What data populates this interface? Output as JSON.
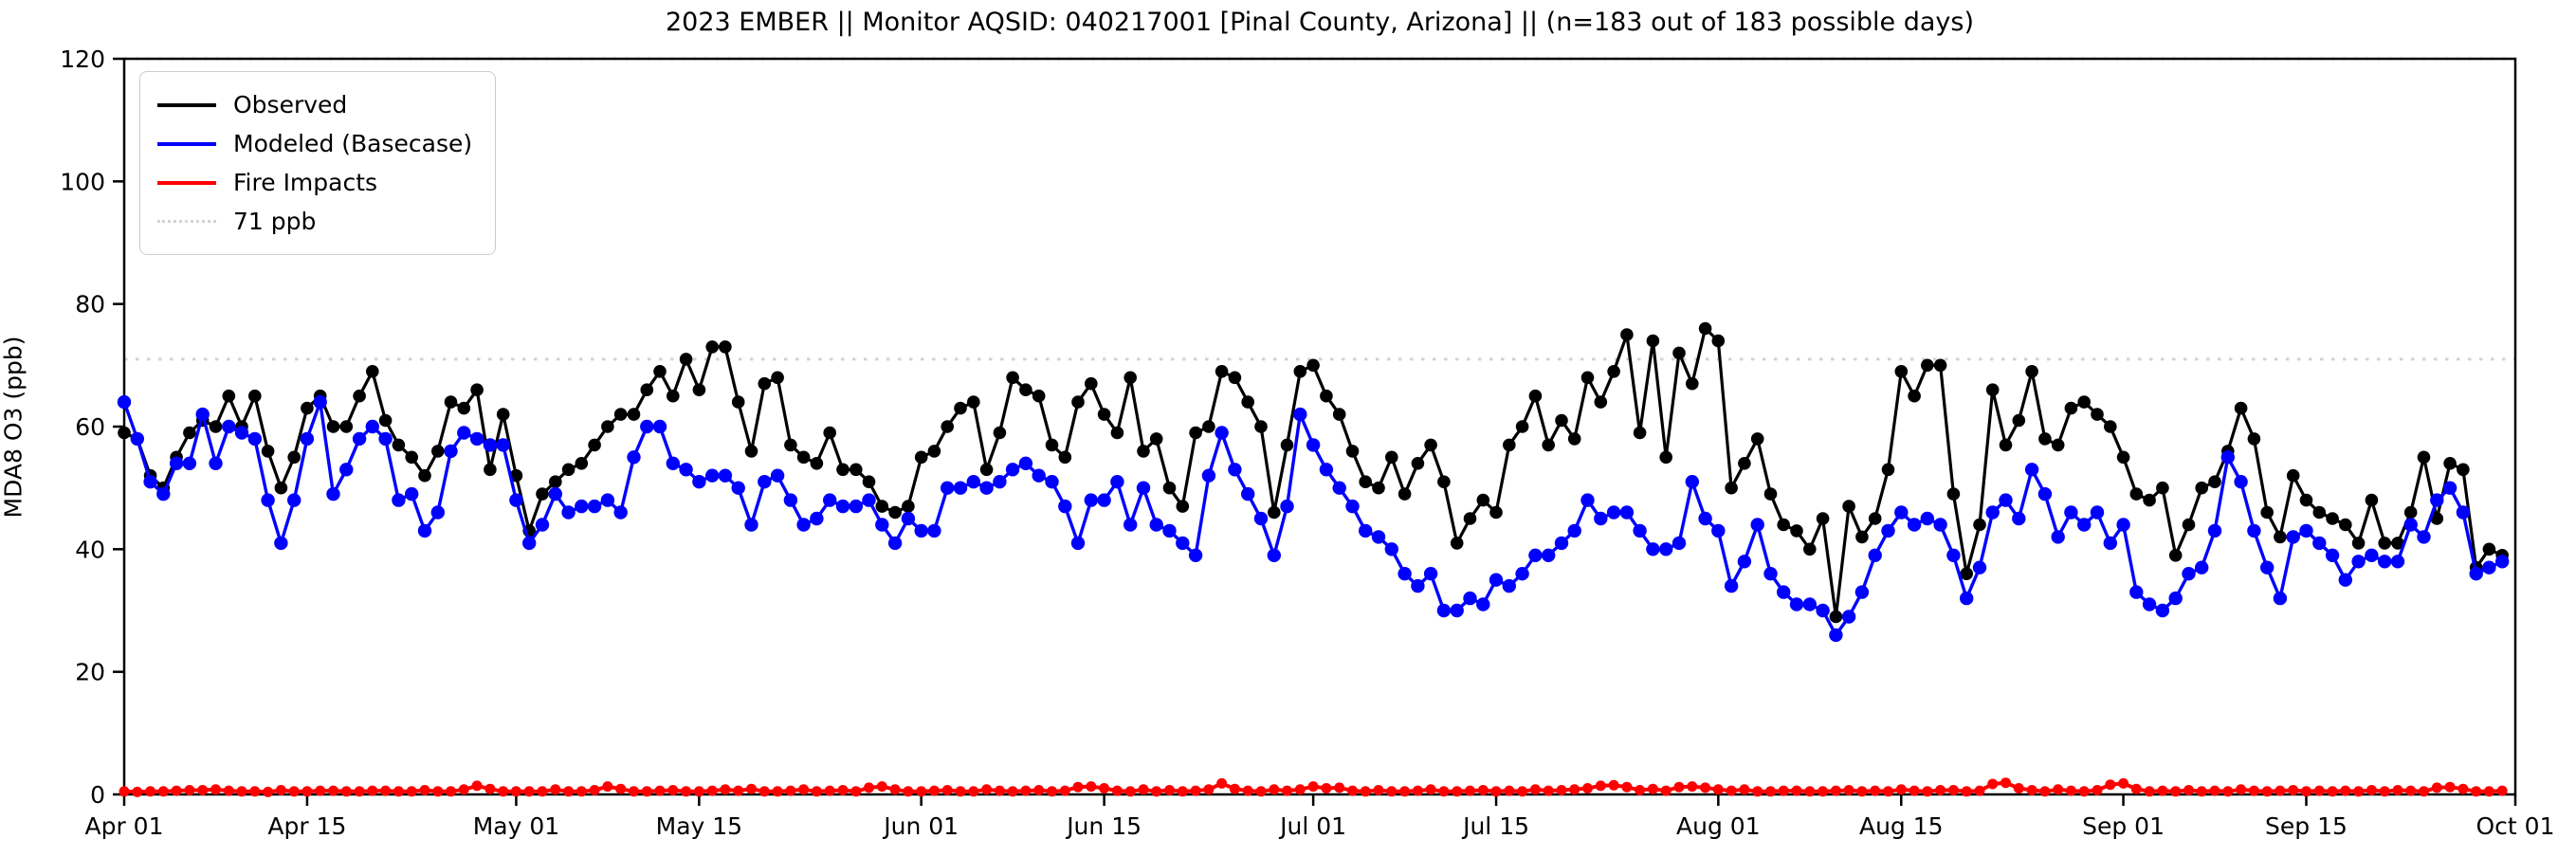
{
  "title": "2023 EMBER || Monitor AQSID: 040217001 [Pinal County, Arizona] || (n=183 out of 183 possible days)",
  "y_axis": {
    "label": "MDA8 O3 (ppb)",
    "ticks": [
      0,
      20,
      40,
      60,
      80,
      100,
      120
    ],
    "min": 0,
    "max": 120
  },
  "x_axis": {
    "ticks": [
      {
        "label": "Apr 01",
        "day": 0
      },
      {
        "label": "Apr 15",
        "day": 14
      },
      {
        "label": "May 01",
        "day": 30
      },
      {
        "label": "May 15",
        "day": 44
      },
      {
        "label": "Jun 01",
        "day": 61
      },
      {
        "label": "Jun 15",
        "day": 75
      },
      {
        "label": "Jul 01",
        "day": 91
      },
      {
        "label": "Jul 15",
        "day": 105
      },
      {
        "label": "Aug 01",
        "day": 122
      },
      {
        "label": "Aug 15",
        "day": 136
      },
      {
        "label": "Sep 01",
        "day": 153
      },
      {
        "label": "Sep 15",
        "day": 167
      },
      {
        "label": "Oct 01",
        "day": 183
      }
    ],
    "span_days": 183
  },
  "legend": {
    "items": [
      {
        "label": "Observed",
        "color": "#000000",
        "style": "solid"
      },
      {
        "label": "Modeled (Basecase)",
        "color": "#0000ff",
        "style": "solid"
      },
      {
        "label": "Fire Impacts",
        "color": "#ff0000",
        "style": "solid"
      },
      {
        "label": "71 ppb",
        "color": "#d3d3d3",
        "style": "dotted"
      }
    ]
  },
  "threshold": {
    "label": "71 ppb",
    "value": 71,
    "color": "#d3d3d3"
  },
  "colors": {
    "observed": "#000000",
    "modeled": "#0000ff",
    "fire": "#ff0000",
    "spine": "#000000"
  },
  "chart_data": {
    "type": "line",
    "title": "2023 EMBER || Monitor AQSID: 040217001 [Pinal County, Arizona] || (n=183 out of 183 possible days)",
    "xlabel": "",
    "ylabel": "MDA8 O3 (ppb)",
    "ylim": [
      0,
      120
    ],
    "x_unit": "day index from Apr 01, 2023 (daily values, Apr 01 - Sep 30)",
    "n_points": 183,
    "grid": false,
    "legend_position": "upper left",
    "threshold_line": {
      "value": 71,
      "label": "71 ppb"
    },
    "series": [
      {
        "name": "Observed",
        "color": "#000000",
        "values": [
          59,
          58,
          52,
          50,
          55,
          59,
          61,
          60,
          65,
          60,
          65,
          56,
          50,
          55,
          63,
          65,
          60,
          60,
          65,
          69,
          61,
          57,
          55,
          52,
          56,
          64,
          63,
          66,
          53,
          62,
          52,
          43,
          49,
          51,
          53,
          54,
          57,
          60,
          62,
          62,
          66,
          69,
          65,
          71,
          66,
          73,
          73,
          64,
          56,
          67,
          68,
          57,
          55,
          54,
          59,
          53,
          53,
          51,
          47,
          46,
          47,
          55,
          56,
          60,
          63,
          64,
          53,
          59,
          68,
          66,
          65,
          57,
          55,
          64,
          67,
          62,
          59,
          68,
          56,
          58,
          50,
          47,
          59,
          60,
          69,
          68,
          64,
          60,
          46,
          57,
          69,
          70,
          65,
          62,
          56,
          51,
          50,
          55,
          49,
          54,
          57,
          51,
          41,
          45,
          48,
          46,
          57,
          60,
          65,
          57,
          61,
          58,
          68,
          64,
          69,
          75,
          59,
          74,
          55,
          72,
          67,
          76,
          74,
          50,
          54,
          58,
          49,
          44,
          43,
          40,
          45,
          29,
          47,
          42,
          45,
          53,
          69,
          65,
          70,
          70,
          49,
          36,
          44,
          66,
          57,
          61,
          69,
          58,
          57,
          63,
          64,
          62,
          60,
          55,
          49,
          48,
          50,
          39,
          44,
          50,
          51,
          56,
          63,
          58,
          46,
          42,
          52,
          48,
          46,
          45,
          44,
          41,
          48,
          41,
          41,
          46,
          55,
          45,
          54,
          53,
          37,
          40,
          39
        ]
      },
      {
        "name": "Modeled (Basecase)",
        "color": "#0000ff",
        "values": [
          64,
          58,
          51,
          49,
          54,
          54,
          62,
          54,
          60,
          59,
          58,
          48,
          41,
          48,
          58,
          64,
          49,
          53,
          58,
          60,
          58,
          48,
          49,
          43,
          46,
          56,
          59,
          58,
          57,
          57,
          48,
          41,
          44,
          49,
          46,
          47,
          47,
          48,
          46,
          55,
          60,
          60,
          54,
          53,
          51,
          52,
          52,
          50,
          44,
          51,
          52,
          48,
          44,
          45,
          48,
          47,
          47,
          48,
          44,
          41,
          45,
          43,
          43,
          50,
          50,
          51,
          50,
          51,
          53,
          54,
          52,
          51,
          47,
          41,
          48,
          48,
          51,
          44,
          50,
          44,
          43,
          41,
          39,
          52,
          59,
          53,
          49,
          45,
          39,
          47,
          62,
          57,
          53,
          50,
          47,
          43,
          42,
          40,
          36,
          34,
          36,
          30,
          30,
          32,
          31,
          35,
          34,
          36,
          39,
          39,
          41,
          43,
          48,
          45,
          46,
          46,
          43,
          40,
          40,
          41,
          51,
          45,
          43,
          34,
          38,
          44,
          36,
          33,
          31,
          31,
          30,
          26,
          29,
          33,
          39,
          43,
          46,
          44,
          45,
          44,
          39,
          32,
          37,
          46,
          48,
          45,
          53,
          49,
          42,
          46,
          44,
          46,
          41,
          44,
          33,
          31,
          30,
          32,
          36,
          37,
          43,
          55,
          51,
          43,
          37,
          32,
          42,
          43,
          41,
          39,
          35,
          38,
          39,
          38,
          38,
          44,
          42,
          48,
          50,
          46,
          36,
          37,
          38
        ]
      },
      {
        "name": "Fire Impacts",
        "color": "#ff0000",
        "values": [
          0.5,
          0.4,
          0.5,
          0.5,
          0.6,
          0.7,
          0.7,
          0.8,
          0.6,
          0.5,
          0.5,
          0.4,
          0.7,
          0.5,
          0.5,
          0.6,
          0.6,
          0.5,
          0.5,
          0.6,
          0.6,
          0.5,
          0.5,
          0.7,
          0.5,
          0.5,
          0.8,
          1.4,
          0.9,
          0.5,
          0.5,
          0.5,
          0.5,
          0.8,
          0.5,
          0.5,
          0.7,
          1.3,
          0.9,
          0.5,
          0.5,
          0.6,
          0.7,
          0.5,
          0.5,
          0.6,
          0.8,
          0.6,
          0.9,
          0.5,
          0.5,
          0.6,
          0.8,
          0.5,
          0.6,
          0.7,
          0.5,
          1.1,
          1.3,
          0.8,
          0.5,
          0.5,
          0.6,
          0.7,
          0.5,
          0.5,
          0.8,
          0.6,
          0.5,
          0.6,
          0.7,
          0.5,
          0.6,
          1.2,
          1.3,
          1.0,
          0.6,
          0.5,
          0.8,
          0.5,
          0.7,
          0.5,
          0.6,
          0.8,
          1.8,
          0.9,
          0.6,
          0.5,
          0.8,
          0.6,
          0.8,
          1.3,
          1.0,
          1.1,
          0.6,
          0.5,
          0.7,
          0.5,
          0.5,
          0.6,
          0.8,
          0.5,
          0.5,
          0.6,
          0.7,
          0.5,
          0.6,
          0.5,
          0.8,
          0.6,
          0.7,
          0.8,
          1.0,
          1.4,
          1.5,
          1.2,
          0.7,
          0.9,
          0.6,
          1.2,
          1.3,
          1.1,
          0.8,
          0.6,
          0.8,
          0.5,
          0.5,
          0.6,
          0.6,
          0.5,
          0.5,
          0.6,
          0.7,
          0.5,
          0.6,
          0.5,
          0.8,
          0.6,
          0.5,
          0.7,
          0.7,
          0.5,
          0.6,
          1.7,
          1.9,
          1.0,
          0.7,
          0.5,
          0.8,
          0.6,
          0.5,
          0.7,
          1.6,
          1.8,
          0.9,
          0.5,
          0.6,
          0.5,
          0.7,
          0.5,
          0.6,
          0.5,
          0.8,
          0.6,
          0.5,
          0.6,
          0.7,
          0.5,
          0.6,
          0.5,
          0.6,
          0.5,
          0.7,
          0.5,
          0.7,
          0.6,
          0.5,
          1.1,
          1.2,
          0.9,
          0.5,
          0.5,
          0.6
        ]
      }
    ]
  }
}
